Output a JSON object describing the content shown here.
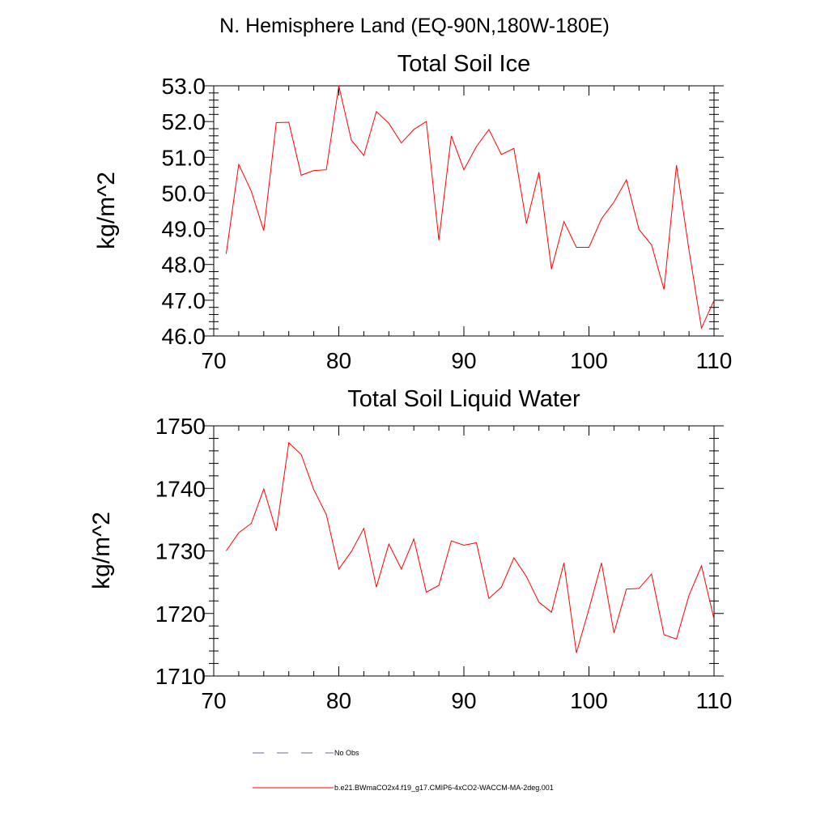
{
  "title": "N. Hemisphere Land (EQ-90N,180W-180E)",
  "legend": {
    "items": [
      {
        "label": "No Obs",
        "color": "#6a6a9a",
        "dash": true
      },
      {
        "label": "b.e21.BWmaCO2x4.f19_g17.CMIP6-4xCO2-WACCM-MA-2deg.001",
        "color": "#ff0000",
        "dash": false
      }
    ]
  },
  "chart_data": [
    {
      "type": "line",
      "title": "Total Soil Ice",
      "xlabel": "",
      "ylabel": "kg/m^2",
      "xlim": [
        70,
        110
      ],
      "ylim": [
        46,
        53
      ],
      "x_ticks": [
        70,
        80,
        90,
        100,
        110
      ],
      "y_ticks": [
        "46.0",
        "47.0",
        "48.0",
        "49.0",
        "50.0",
        "51.0",
        "52.0",
        "53.0"
      ],
      "series": [
        {
          "name": "b.e21.BWmaCO2x4.f19_g17.CMIP6-4xCO2-WACCM-MA-2deg.001",
          "color": "#ff0000",
          "x": [
            71,
            72,
            73,
            74,
            75,
            76,
            77,
            78,
            79,
            80,
            81,
            82,
            83,
            84,
            85,
            86,
            87,
            88,
            89,
            90,
            91,
            92,
            93,
            94,
            95,
            96,
            97,
            98,
            99,
            100,
            101,
            102,
            103,
            104,
            105,
            106,
            107,
            108,
            109,
            110
          ],
          "values": [
            48.3,
            50.8,
            50.05,
            48.95,
            51.97,
            51.98,
            50.5,
            50.63,
            50.65,
            53.0,
            51.48,
            51.05,
            52.28,
            51.95,
            51.4,
            51.78,
            52.0,
            48.68,
            51.6,
            50.65,
            51.3,
            51.78,
            51.08,
            51.25,
            49.15,
            50.58,
            47.87,
            49.2,
            48.48,
            48.48,
            49.28,
            49.75,
            50.37,
            48.98,
            48.55,
            47.3,
            50.78,
            48.4,
            46.22,
            47.0
          ]
        }
      ]
    },
    {
      "type": "line",
      "title": "Total Soil Liquid Water",
      "xlabel": "",
      "ylabel": "kg/m^2",
      "xlim": [
        70,
        110
      ],
      "ylim": [
        1710,
        1750
      ],
      "x_ticks": [
        70,
        80,
        90,
        100,
        110
      ],
      "y_ticks": [
        "1710",
        "1720",
        "1730",
        "1740",
        "1750"
      ],
      "series": [
        {
          "name": "b.e21.BWmaCO2x4.f19_g17.CMIP6-4xCO2-WACCM-MA-2deg.001",
          "color": "#ff0000",
          "x": [
            71,
            72,
            73,
            74,
            75,
            76,
            77,
            78,
            79,
            80,
            81,
            82,
            83,
            84,
            85,
            86,
            87,
            88,
            89,
            90,
            91,
            92,
            93,
            94,
            95,
            96,
            97,
            98,
            99,
            100,
            101,
            102,
            103,
            104,
            105,
            106,
            107,
            108,
            109,
            110
          ],
          "values": [
            1730.0,
            1732.9,
            1734.4,
            1739.9,
            1733.2,
            1747.3,
            1745.4,
            1739.8,
            1735.8,
            1727.1,
            1729.9,
            1733.6,
            1724.2,
            1731.1,
            1727.1,
            1731.9,
            1723.4,
            1724.5,
            1731.6,
            1730.9,
            1731.3,
            1722.4,
            1724.2,
            1728.9,
            1725.9,
            1721.8,
            1720.2,
            1728.1,
            1713.7,
            1720.7,
            1728.1,
            1716.9,
            1723.9,
            1724.0,
            1726.3,
            1716.6,
            1715.9,
            1722.9,
            1727.6,
            1719.1
          ]
        }
      ]
    }
  ]
}
